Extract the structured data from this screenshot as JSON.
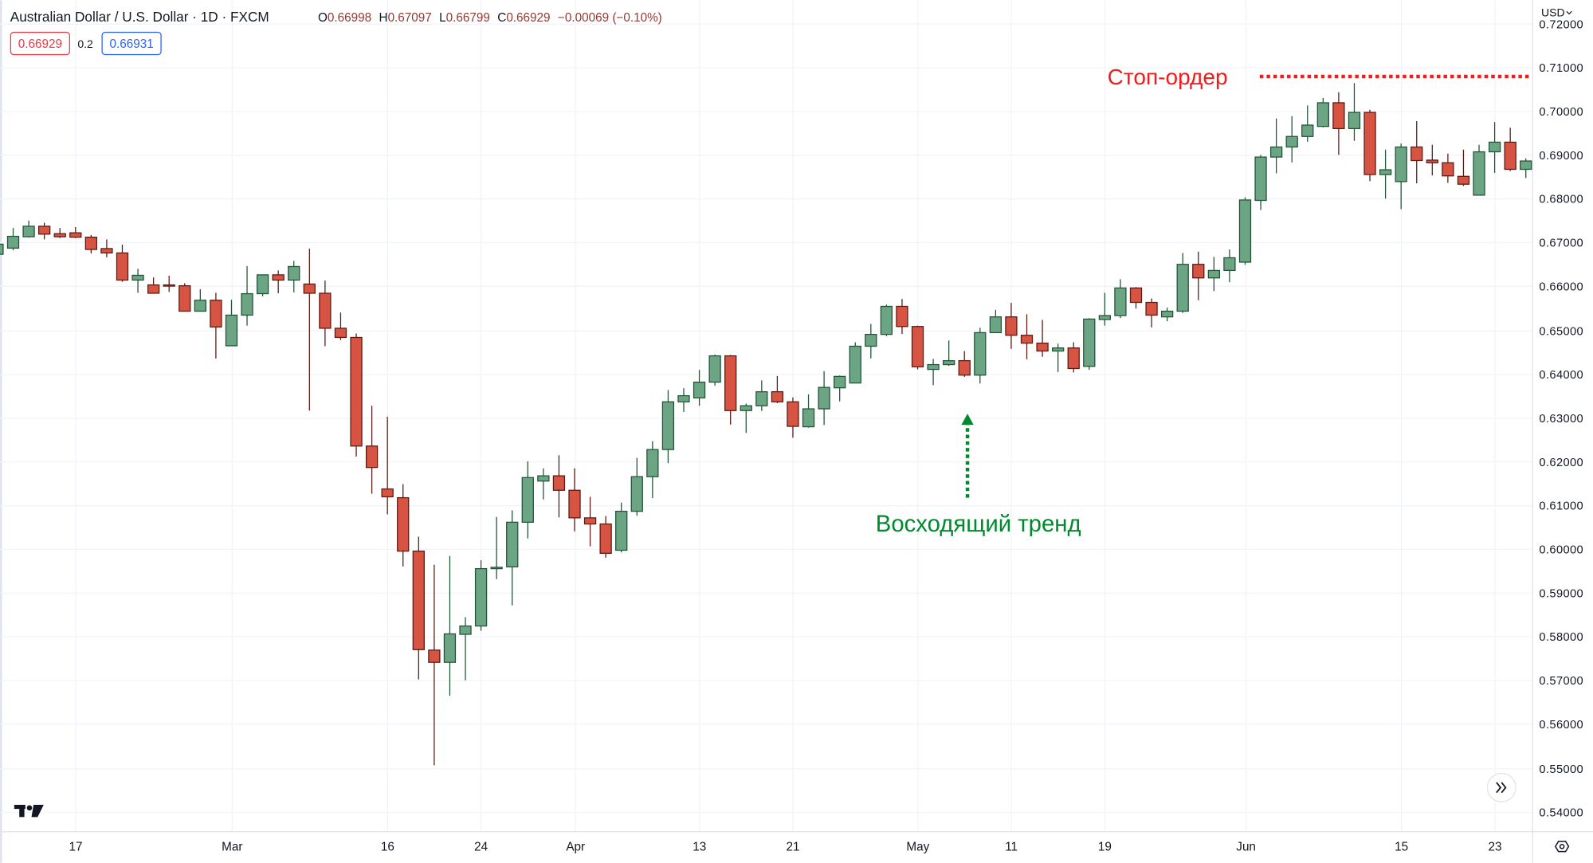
{
  "header": {
    "title": "Australian Dollar / U.S. Dollar · 1D · FXCM",
    "ohlc": {
      "o_label": "O",
      "o": "0.66998",
      "h_label": "H",
      "h": "0.67097",
      "l_label": "L",
      "l": "0.66799",
      "c_label": "C",
      "c": "0.66929",
      "change": "−0.00069 (−0.10%)"
    },
    "sell_price": "0.66929",
    "spread": "0.2",
    "buy_price": "0.66931"
  },
  "price_axis": {
    "currency": "USD",
    "currency_icon": "chevron-down-icon",
    "settings_icon": "eye-settings-icon"
  },
  "scroll_button_icon": "double-chevron-right-icon",
  "logo": "TradingView",
  "colors": {
    "up_body": "#6ba583",
    "up_border": "#225437",
    "down_body": "#d75442",
    "down_border": "#5b1a13",
    "grid": "#f0f3fa",
    "stop_order": "#f21c1c",
    "trend": "#008a2e",
    "sell": "#f23645",
    "buy": "#2962ff"
  },
  "annotations": {
    "stop_order": {
      "label": "Стоп-ордер",
      "price": 0.7079
    },
    "trend": {
      "label": "Восходящий тренд",
      "arrow_date": "05-06",
      "arrow_from": 0.6117,
      "arrow_to": 0.6309
    }
  },
  "chart_data": {
    "type": "candlestick",
    "title": "Australian Dollar / U.S. Dollar · 1D · FXCM",
    "ylim": [
      0.5365,
      0.7252
    ],
    "grid": true,
    "y_ticks": [
      "0.72000",
      "0.71000",
      "0.70000",
      "0.69000",
      "0.68000",
      "0.67000",
      "0.66000",
      "0.65000",
      "0.64000",
      "0.63000",
      "0.62000",
      "0.61000",
      "0.60000",
      "0.59000",
      "0.58000",
      "0.57000",
      "0.56000",
      "0.55000",
      "0.54000"
    ],
    "x_ticks": [
      {
        "label": "17",
        "date": "02-17"
      },
      {
        "label": "Mar",
        "date": "03-02"
      },
      {
        "label": "16",
        "date": "03-16"
      },
      {
        "label": "24",
        "date": "03-24"
      },
      {
        "label": "Apr",
        "date": "04-01"
      },
      {
        "label": "13",
        "date": "04-13"
      },
      {
        "label": "21",
        "date": "04-21"
      },
      {
        "label": "May",
        "date": "05-01"
      },
      {
        "label": "11",
        "date": "05-11"
      },
      {
        "label": "19",
        "date": "05-19"
      },
      {
        "label": "Jun",
        "date": "06-01"
      },
      {
        "label": "15",
        "date": "06-15"
      },
      {
        "label": "23",
        "date": "06-23"
      }
    ],
    "columns": [
      "date",
      "open",
      "high",
      "low",
      "close"
    ],
    "candles": [
      [
        "02-10",
        0.6673,
        0.6702,
        0.667,
        0.6696
      ],
      [
        "02-11",
        0.6687,
        0.6733,
        0.6682,
        0.6714
      ],
      [
        "02-12",
        0.6713,
        0.675,
        0.6711,
        0.6737
      ],
      [
        "02-13",
        0.6737,
        0.6745,
        0.6707,
        0.6719
      ],
      [
        "02-14",
        0.672,
        0.6733,
        0.671,
        0.6713
      ],
      [
        "02-17",
        0.6722,
        0.6735,
        0.671,
        0.6712
      ],
      [
        "02-18",
        0.6712,
        0.6717,
        0.6675,
        0.6684
      ],
      [
        "02-19",
        0.6686,
        0.6707,
        0.6666,
        0.6676
      ],
      [
        "02-20",
        0.6676,
        0.6695,
        0.661,
        0.6614
      ],
      [
        "02-21",
        0.6614,
        0.664,
        0.6585,
        0.6625
      ],
      [
        "02-24",
        0.6603,
        0.662,
        0.6584,
        0.6584
      ],
      [
        "02-25",
        0.6603,
        0.6624,
        0.6587,
        0.6601
      ],
      [
        "02-26",
        0.6601,
        0.6607,
        0.6542,
        0.6543
      ],
      [
        "02-27",
        0.6543,
        0.6593,
        0.6542,
        0.6568
      ],
      [
        "02-28",
        0.6568,
        0.6585,
        0.6435,
        0.6507
      ],
      [
        "03-02",
        0.6464,
        0.6569,
        0.6463,
        0.6534
      ],
      [
        "03-03",
        0.6534,
        0.6646,
        0.651,
        0.6583
      ],
      [
        "03-04",
        0.6583,
        0.6626,
        0.6577,
        0.6626
      ],
      [
        "03-05",
        0.6626,
        0.6636,
        0.6584,
        0.6614
      ],
      [
        "03-06",
        0.6614,
        0.6658,
        0.6586,
        0.6645
      ],
      [
        "03-09",
        0.6605,
        0.6686,
        0.6316,
        0.6584
      ],
      [
        "03-10",
        0.6584,
        0.6613,
        0.6463,
        0.6504
      ],
      [
        "03-11",
        0.6504,
        0.654,
        0.6477,
        0.6483
      ],
      [
        "03-12",
        0.6483,
        0.6492,
        0.6211,
        0.6235
      ],
      [
        "03-13",
        0.6235,
        0.6327,
        0.6126,
        0.6186
      ],
      [
        "03-16",
        0.6137,
        0.6302,
        0.6079,
        0.6119
      ],
      [
        "03-17",
        0.6117,
        0.6148,
        0.596,
        0.5995
      ],
      [
        "03-18",
        0.5995,
        0.6028,
        0.5702,
        0.577
      ],
      [
        "03-19",
        0.5769,
        0.5964,
        0.5506,
        0.5741
      ],
      [
        "03-20",
        0.5741,
        0.5984,
        0.5665,
        0.5806
      ],
      [
        "03-23",
        0.5805,
        0.5844,
        0.57,
        0.5824
      ],
      [
        "03-24",
        0.5824,
        0.5974,
        0.5813,
        0.5955
      ],
      [
        "03-25",
        0.5955,
        0.6073,
        0.5931,
        0.5958
      ],
      [
        "03-26",
        0.5959,
        0.6088,
        0.5871,
        0.6061
      ],
      [
        "03-27",
        0.6061,
        0.62,
        0.6024,
        0.6163
      ],
      [
        "03-30",
        0.6155,
        0.6184,
        0.6113,
        0.6167
      ],
      [
        "03-31",
        0.6167,
        0.6214,
        0.6072,
        0.6134
      ],
      [
        "04-01",
        0.6134,
        0.6184,
        0.604,
        0.6071
      ],
      [
        "04-02",
        0.6071,
        0.6119,
        0.6006,
        0.6057
      ],
      [
        "04-03",
        0.6057,
        0.6075,
        0.598,
        0.599
      ],
      [
        "04-06",
        0.5997,
        0.6106,
        0.5992,
        0.6086
      ],
      [
        "04-07",
        0.6086,
        0.6208,
        0.6076,
        0.6165
      ],
      [
        "04-08",
        0.6165,
        0.6246,
        0.6116,
        0.6227
      ],
      [
        "04-09",
        0.6227,
        0.6363,
        0.6196,
        0.6336
      ],
      [
        "04-10",
        0.6336,
        0.6367,
        0.6313,
        0.635
      ],
      [
        "04-13",
        0.6345,
        0.6409,
        0.6327,
        0.6381
      ],
      [
        "04-14",
        0.6381,
        0.6444,
        0.6373,
        0.6441
      ],
      [
        "04-15",
        0.6441,
        0.6443,
        0.6284,
        0.6316
      ],
      [
        "04-16",
        0.6316,
        0.6332,
        0.6265,
        0.6327
      ],
      [
        "04-17",
        0.6327,
        0.6385,
        0.6315,
        0.6359
      ],
      [
        "04-20",
        0.6359,
        0.6395,
        0.6333,
        0.6336
      ],
      [
        "04-21",
        0.6336,
        0.6346,
        0.6254,
        0.628
      ],
      [
        "04-22",
        0.6279,
        0.6353,
        0.6277,
        0.632
      ],
      [
        "04-23",
        0.632,
        0.6406,
        0.6283,
        0.6369
      ],
      [
        "04-24",
        0.6368,
        0.6396,
        0.6337,
        0.6394
      ],
      [
        "04-27",
        0.6379,
        0.6472,
        0.6379,
        0.6463
      ],
      [
        "04-28",
        0.6463,
        0.6514,
        0.6435,
        0.649
      ],
      [
        "04-29",
        0.649,
        0.6558,
        0.6486,
        0.6554
      ],
      [
        "04-30",
        0.6554,
        0.6571,
        0.6491,
        0.6508
      ],
      [
        "05-01",
        0.6508,
        0.651,
        0.641,
        0.6416
      ],
      [
        "05-04",
        0.641,
        0.6434,
        0.6374,
        0.6421
      ],
      [
        "05-05",
        0.6421,
        0.6476,
        0.6418,
        0.643
      ],
      [
        "05-06",
        0.643,
        0.6452,
        0.6393,
        0.6397
      ],
      [
        "05-07",
        0.6397,
        0.6505,
        0.6378,
        0.6494
      ],
      [
        "05-08",
        0.6494,
        0.6546,
        0.6494,
        0.653
      ],
      [
        "05-11",
        0.653,
        0.6562,
        0.6457,
        0.6488
      ],
      [
        "05-12",
        0.6488,
        0.6536,
        0.6433,
        0.647
      ],
      [
        "05-13",
        0.647,
        0.6523,
        0.6439,
        0.6452
      ],
      [
        "05-14",
        0.6452,
        0.6469,
        0.6404,
        0.6459
      ],
      [
        "05-15",
        0.6459,
        0.6472,
        0.6403,
        0.6412
      ],
      [
        "05-18",
        0.6417,
        0.6527,
        0.6409,
        0.6525
      ],
      [
        "05-19",
        0.6524,
        0.6585,
        0.651,
        0.6533
      ],
      [
        "05-20",
        0.6533,
        0.6616,
        0.6527,
        0.6596
      ],
      [
        "05-21",
        0.6596,
        0.6598,
        0.6549,
        0.6563
      ],
      [
        "05-22",
        0.6563,
        0.6572,
        0.6506,
        0.6534
      ],
      [
        "05-25",
        0.653,
        0.6551,
        0.652,
        0.6543
      ],
      [
        "05-26",
        0.6543,
        0.6676,
        0.6539,
        0.665
      ],
      [
        "05-27",
        0.665,
        0.6679,
        0.6568,
        0.6619
      ],
      [
        "05-28",
        0.6619,
        0.6667,
        0.6589,
        0.6636
      ],
      [
        "05-29",
        0.6636,
        0.6684,
        0.6609,
        0.6665
      ],
      [
        "06-01",
        0.6655,
        0.6803,
        0.6649,
        0.6797
      ],
      [
        "06-02",
        0.6796,
        0.69,
        0.6774,
        0.6895
      ],
      [
        "06-03",
        0.6895,
        0.6983,
        0.6858,
        0.6918
      ],
      [
        "06-04",
        0.6918,
        0.6988,
        0.6883,
        0.6942
      ],
      [
        "06-05",
        0.6942,
        0.7013,
        0.693,
        0.6968
      ],
      [
        "06-08",
        0.6965,
        0.703,
        0.6963,
        0.7019
      ],
      [
        "06-09",
        0.7019,
        0.7043,
        0.69,
        0.696
      ],
      [
        "06-10",
        0.696,
        0.7064,
        0.6932,
        0.6997
      ],
      [
        "06-11",
        0.6997,
        0.7003,
        0.684,
        0.6855
      ],
      [
        "06-12",
        0.6855,
        0.6912,
        0.68,
        0.6866
      ],
      [
        "06-15",
        0.6839,
        0.6926,
        0.6776,
        0.6918
      ],
      [
        "06-16",
        0.6918,
        0.6977,
        0.6835,
        0.6887
      ],
      [
        "06-17",
        0.6888,
        0.6923,
        0.6853,
        0.6882
      ],
      [
        "06-18",
        0.6882,
        0.6903,
        0.6836,
        0.6852
      ],
      [
        "06-19",
        0.6851,
        0.6912,
        0.6829,
        0.6833
      ],
      [
        "06-22",
        0.6808,
        0.6923,
        0.6808,
        0.6907
      ],
      [
        "06-23",
        0.6907,
        0.6975,
        0.6859,
        0.6929
      ],
      [
        "06-24",
        0.6929,
        0.6962,
        0.6863,
        0.6867
      ],
      [
        "06-25",
        0.6867,
        0.6892,
        0.6847,
        0.6886
      ]
    ]
  }
}
